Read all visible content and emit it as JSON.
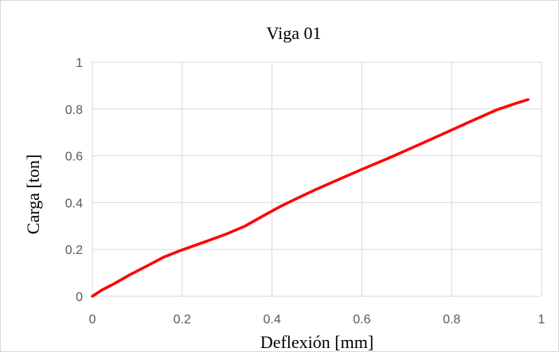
{
  "chart_data": {
    "type": "line",
    "title": "Viga 01",
    "xlabel": "Deflexión [mm]",
    "ylabel": "Carga [ton]",
    "xlim": [
      0,
      1
    ],
    "ylim": [
      0,
      1
    ],
    "x_ticks": [
      "0",
      "0.2",
      "0.4",
      "0.6",
      "0.8",
      "1"
    ],
    "y_ticks": [
      "0",
      "0.2",
      "0.4",
      "0.6",
      "0.8",
      "1"
    ],
    "grid": true,
    "legend": "none",
    "series": [
      {
        "color": "#ff0000",
        "x": [
          0,
          0.02,
          0.05,
          0.08,
          0.12,
          0.16,
          0.2,
          0.25,
          0.3,
          0.34,
          0.38,
          0.42,
          0.46,
          0.5,
          0.55,
          0.6,
          0.66,
          0.72,
          0.78,
          0.84,
          0.9,
          0.94,
          0.97
        ],
        "y": [
          0,
          0.025,
          0.055,
          0.088,
          0.128,
          0.168,
          0.198,
          0.232,
          0.267,
          0.3,
          0.343,
          0.385,
          0.422,
          0.458,
          0.5,
          0.542,
          0.59,
          0.641,
          0.693,
          0.745,
          0.796,
          0.822,
          0.84
        ]
      }
    ]
  }
}
